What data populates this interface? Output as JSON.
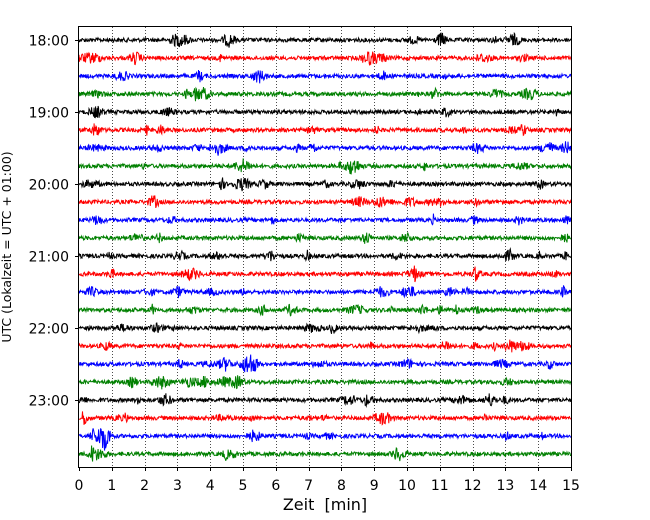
{
  "chart_data": {
    "type": "line",
    "title": "",
    "xlabel": "Zeit  [min]",
    "ylabel": "UTC (Lokalzeit = UTC + 01:00)",
    "xlim": [
      0,
      15
    ],
    "xticks": [
      0,
      1,
      2,
      3,
      4,
      5,
      6,
      7,
      8,
      9,
      10,
      11,
      12,
      13,
      14,
      15
    ],
    "grid": "vertical dotted",
    "ytick_labels": [
      "18:00",
      "19:00",
      "20:00",
      "21:00",
      "22:00",
      "23:00"
    ],
    "trace_interval_min": 15,
    "trace_start": "18:00",
    "trace_count": 24,
    "trace_colors": [
      "#000000",
      "#ff0000",
      "#0000ff",
      "#008000"
    ],
    "traces": [
      {
        "time": "18:00",
        "color": "#000000"
      },
      {
        "time": "18:15",
        "color": "#ff0000"
      },
      {
        "time": "18:30",
        "color": "#0000ff"
      },
      {
        "time": "18:45",
        "color": "#008000"
      },
      {
        "time": "19:00",
        "color": "#000000"
      },
      {
        "time": "19:15",
        "color": "#ff0000"
      },
      {
        "time": "19:30",
        "color": "#0000ff"
      },
      {
        "time": "19:45",
        "color": "#008000"
      },
      {
        "time": "20:00",
        "color": "#000000"
      },
      {
        "time": "20:15",
        "color": "#ff0000"
      },
      {
        "time": "20:30",
        "color": "#0000ff"
      },
      {
        "time": "20:45",
        "color": "#008000"
      },
      {
        "time": "21:00",
        "color": "#000000"
      },
      {
        "time": "21:15",
        "color": "#ff0000"
      },
      {
        "time": "21:30",
        "color": "#0000ff"
      },
      {
        "time": "21:45",
        "color": "#008000"
      },
      {
        "time": "22:00",
        "color": "#000000"
      },
      {
        "time": "22:15",
        "color": "#ff0000"
      },
      {
        "time": "22:30",
        "color": "#0000ff"
      },
      {
        "time": "22:45",
        "color": "#008000"
      },
      {
        "time": "23:00",
        "color": "#000000"
      },
      {
        "time": "23:15",
        "color": "#ff0000"
      },
      {
        "time": "23:30",
        "color": "#0000ff"
      },
      {
        "time": "23:45",
        "color": "#008000"
      }
    ]
  }
}
